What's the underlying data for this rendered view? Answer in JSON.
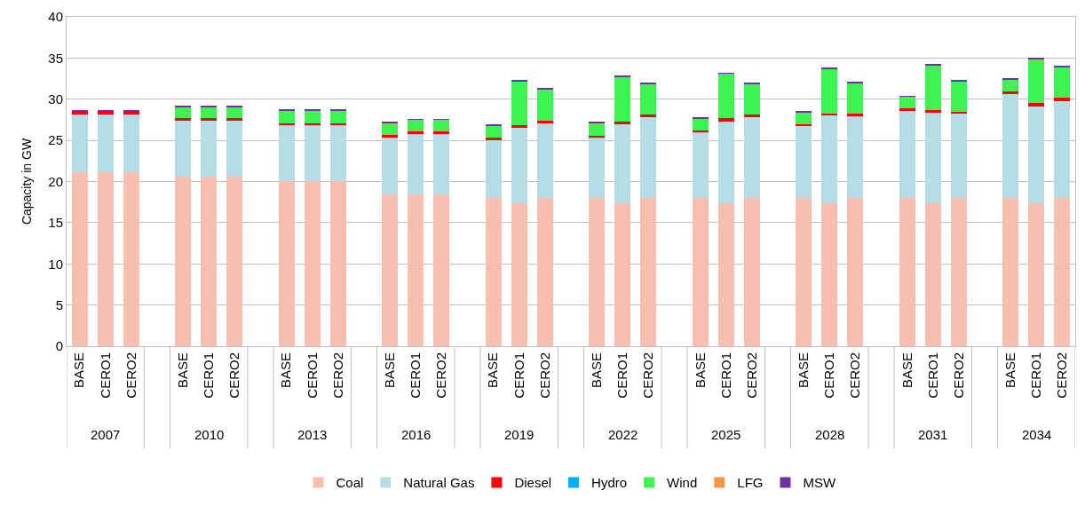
{
  "chart_data": {
    "type": "bar",
    "stacked": true,
    "ylabel": "Capacity in GW",
    "categories": [
      "BASE",
      "CERO1",
      "CERO2",
      "BASE",
      "CERO1",
      "CERO2",
      "BASE",
      "CERO1",
      "CERO2",
      "BASE",
      "CERO1",
      "CERO2",
      "BASE",
      "CERO1",
      "CERO2",
      "BASE",
      "CERO1",
      "CERO2",
      "BASE",
      "CERO1",
      "CERO2",
      "BASE",
      "CERO1",
      "CERO2",
      "BASE",
      "CERO1",
      "CERO2",
      "BASE",
      "CERO1",
      "CERO2"
    ],
    "annotations": [
      "2007",
      "2010",
      "2013",
      "2016",
      "2019",
      "2022",
      "2025",
      "2028",
      "2031",
      "2034"
    ],
    "series": [
      {
        "name": "Coal",
        "color": "#f8bfb0",
        "values": [
          21.1,
          21.1,
          21.1,
          20.6,
          20.6,
          20.6,
          20.1,
          20.1,
          20.1,
          18.4,
          18.4,
          18.4,
          18.0,
          17.4,
          18.0,
          18.0,
          17.4,
          18.0,
          18.0,
          17.4,
          18.0,
          18.0,
          17.4,
          18.0,
          18.0,
          17.4,
          18.0,
          18.0,
          17.4,
          18.0
        ]
      },
      {
        "name": "Natural Gas",
        "color": "#b6dce6",
        "values": [
          7.0,
          7.0,
          7.0,
          6.8,
          6.8,
          6.8,
          6.7,
          6.7,
          6.7,
          6.9,
          7.4,
          7.4,
          7.0,
          9.1,
          9.1,
          7.3,
          9.6,
          9.8,
          8.0,
          9.9,
          9.8,
          8.7,
          10.6,
          9.9,
          10.6,
          11.0,
          10.2,
          12.7,
          11.7,
          11.8
        ]
      },
      {
        "name": "Diesel",
        "color": "#ff0000",
        "values": [
          0.4,
          0.4,
          0.4,
          0.3,
          0.3,
          0.3,
          0.3,
          0.3,
          0.3,
          0.4,
          0.3,
          0.3,
          0.3,
          0.3,
          0.3,
          0.3,
          0.3,
          0.3,
          0.2,
          0.4,
          0.3,
          0.3,
          0.3,
          0.3,
          0.3,
          0.3,
          0.3,
          0.2,
          0.4,
          0.4
        ]
      },
      {
        "name": "Hydro",
        "color": "#00b0f0",
        "values": [
          0,
          0,
          0,
          0,
          0,
          0,
          0,
          0,
          0,
          0,
          0,
          0,
          0,
          0,
          0,
          0,
          0,
          0,
          0,
          0,
          0,
          0,
          0,
          0,
          0,
          0,
          0,
          0,
          0,
          0
        ]
      },
      {
        "name": "Wind",
        "color": "#3cf550",
        "values": [
          0,
          0,
          0,
          1.4,
          1.4,
          1.4,
          1.5,
          1.5,
          1.5,
          1.4,
          1.4,
          1.4,
          1.5,
          5.4,
          3.8,
          1.5,
          5.4,
          3.8,
          1.5,
          5.4,
          3.8,
          1.4,
          5.4,
          3.8,
          1.4,
          5.4,
          3.7,
          1.5,
          5.4,
          3.7
        ]
      },
      {
        "name": "LFG",
        "color": "#f79646",
        "values": [
          0,
          0,
          0,
          0,
          0,
          0,
          0,
          0,
          0,
          0,
          0,
          0,
          0,
          0,
          0,
          0,
          0,
          0,
          0,
          0,
          0,
          0,
          0,
          0,
          0,
          0,
          0,
          0,
          0,
          0
        ]
      },
      {
        "name": "MSW",
        "color": "#7030a0",
        "values": [
          0.1,
          0.1,
          0.1,
          0.1,
          0.1,
          0.1,
          0.1,
          0.1,
          0.1,
          0.1,
          0.1,
          0.1,
          0.1,
          0.1,
          0.1,
          0.1,
          0.1,
          0.1,
          0.1,
          0.1,
          0.1,
          0.1,
          0.1,
          0.1,
          0.1,
          0.1,
          0.1,
          0.1,
          0.1,
          0.1
        ]
      }
    ],
    "ylim": [
      0,
      40
    ],
    "yticks": [
      0,
      5,
      10,
      15,
      20,
      25,
      30,
      35,
      40
    ],
    "grid": "y",
    "legend": "bottom"
  }
}
